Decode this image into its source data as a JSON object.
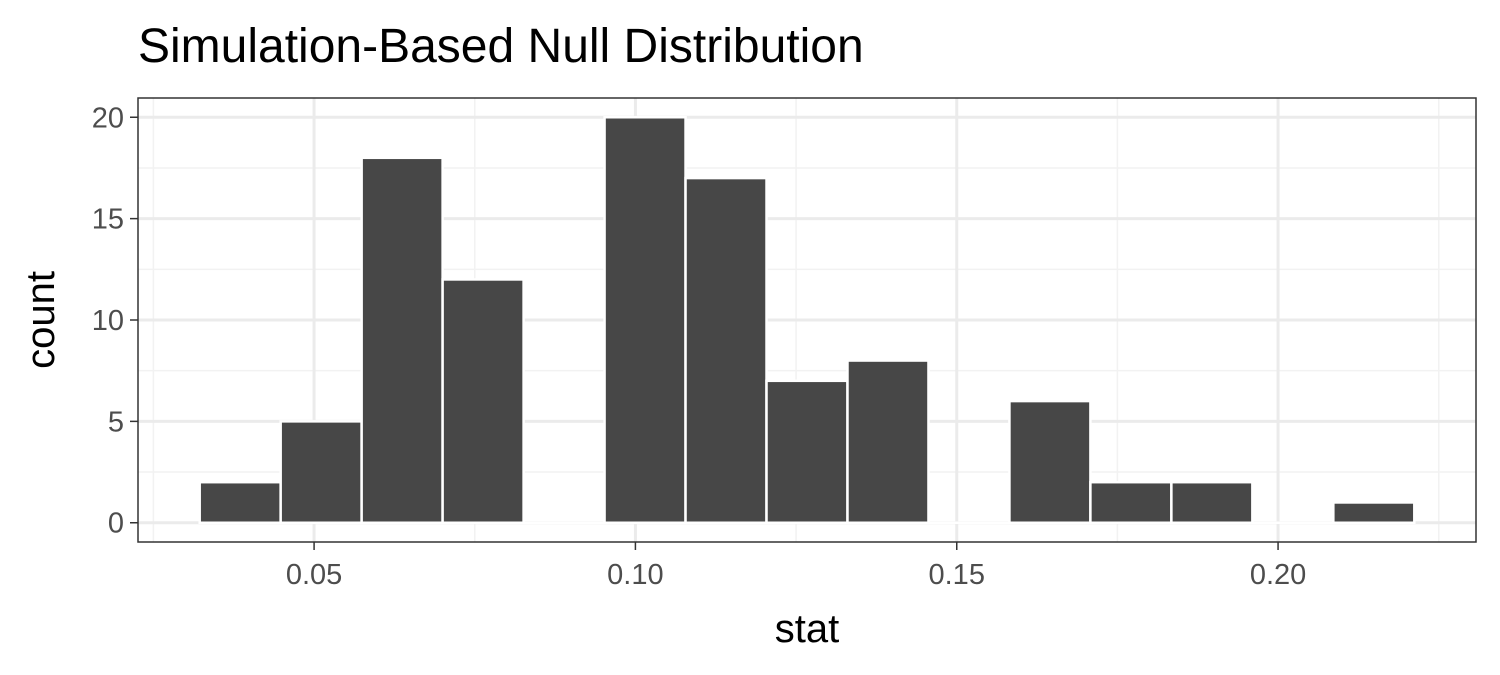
{
  "chart_data": {
    "type": "bar",
    "title": "Simulation-Based Null Distribution",
    "xlabel": "stat",
    "ylabel": "count",
    "bin_width": 0.0126,
    "bins": [
      {
        "center": 0.0385,
        "count": 2
      },
      {
        "center": 0.0511,
        "count": 5
      },
      {
        "center": 0.0637,
        "count": 18
      },
      {
        "center": 0.0763,
        "count": 12
      },
      {
        "center": 0.0889,
        "count": 0
      },
      {
        "center": 0.1015,
        "count": 20
      },
      {
        "center": 0.1141,
        "count": 17
      },
      {
        "center": 0.1267,
        "count": 7
      },
      {
        "center": 0.1393,
        "count": 8
      },
      {
        "center": 0.1519,
        "count": 0
      },
      {
        "center": 0.1645,
        "count": 6
      },
      {
        "center": 0.1771,
        "count": 2
      },
      {
        "center": 0.1897,
        "count": 2
      },
      {
        "center": 0.2023,
        "count": 0
      },
      {
        "center": 0.2149,
        "count": 1
      }
    ],
    "xlim": [
      0.0226,
      0.2308
    ],
    "ylim": [
      -0.95,
      20.95
    ],
    "x_ticks": [
      {
        "value": 0.05,
        "label": "0.05"
      },
      {
        "value": 0.1,
        "label": "0.10"
      },
      {
        "value": 0.15,
        "label": "0.15"
      },
      {
        "value": 0.2,
        "label": "0.20"
      }
    ],
    "x_minor_ticks": [
      0.025,
      0.075,
      0.125,
      0.175,
      0.225
    ],
    "y_ticks": [
      {
        "value": 0,
        "label": "0"
      },
      {
        "value": 5,
        "label": "5"
      },
      {
        "value": 10,
        "label": "10"
      },
      {
        "value": 15,
        "label": "15"
      },
      {
        "value": 20,
        "label": "20"
      }
    ],
    "y_minor_ticks": [
      2.5,
      7.5,
      12.5,
      17.5
    ],
    "grid": true,
    "legend": "none",
    "colors": {
      "bar_fill": "#474747",
      "bar_border": "#ffffff",
      "panel_border": "#333333",
      "grid_major": "#ebebeb",
      "grid_minor": "#f2f2f2",
      "tick_label": "#4d4d4d"
    }
  }
}
